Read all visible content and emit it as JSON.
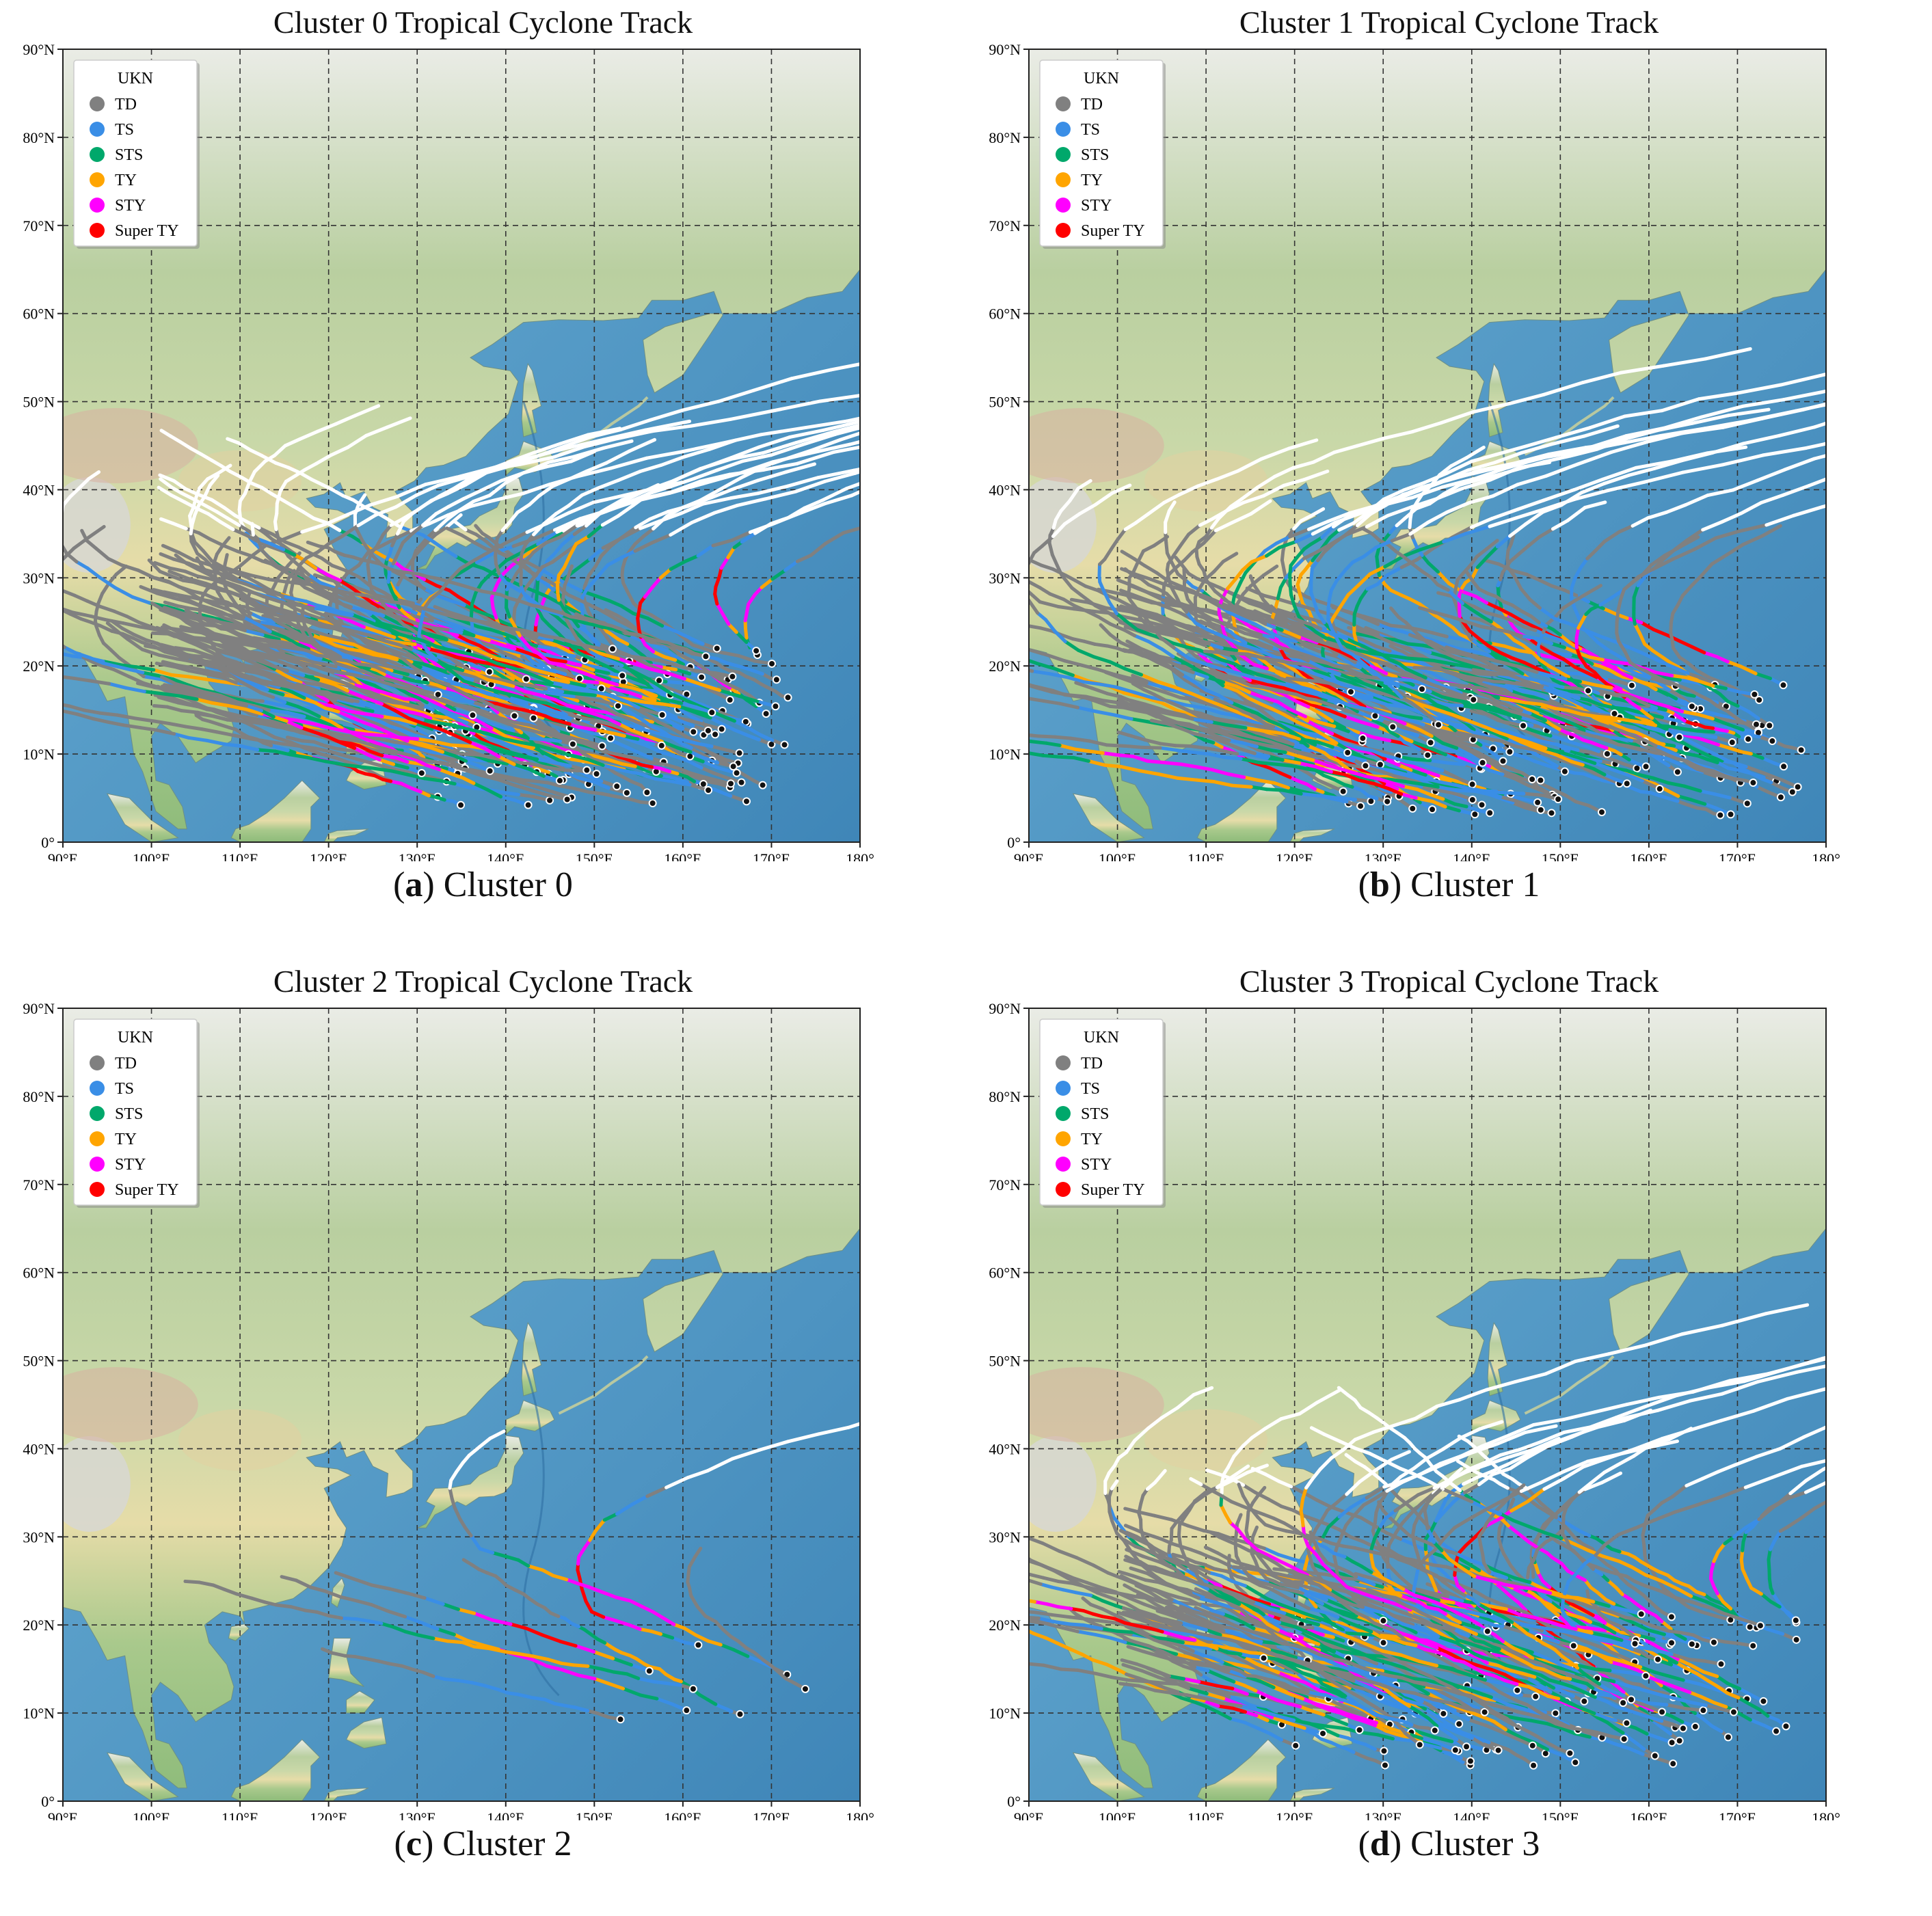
{
  "panels": [
    {
      "id": "a",
      "title": "Cluster 0 Tropical Cyclone Track",
      "caption_letter": "a",
      "caption_text": " Cluster 0",
      "density": "high-west",
      "seed": 11
    },
    {
      "id": "b",
      "title": "Cluster 1 Tropical Cyclone Track",
      "caption_letter": "b",
      "caption_text": " Cluster 1",
      "density": "high-central",
      "seed": 23
    },
    {
      "id": "c",
      "title": "Cluster 2 Tropical Cyclone Track",
      "caption_letter": "c",
      "caption_text": " Cluster 2",
      "density": "sparse",
      "seed": 37
    },
    {
      "id": "d",
      "title": "Cluster 3 Tropical Cyclone Track",
      "caption_letter": "d",
      "caption_text": " Cluster 3",
      "density": "high-southwest",
      "seed": 53
    }
  ],
  "legend": {
    "title": "UKN",
    "items": [
      {
        "label": "TD",
        "color": "#808080"
      },
      {
        "label": "TS",
        "color": "#3a8ee6"
      },
      {
        "label": "STS",
        "color": "#00a86b"
      },
      {
        "label": "TY",
        "color": "#ffa500"
      },
      {
        "label": "STY",
        "color": "#ff00ff"
      },
      {
        "label": "Super TY",
        "color": "#ff0000"
      }
    ]
  },
  "axes": {
    "lat_labels": [
      "0°",
      "10°N",
      "20°N",
      "30°N",
      "40°N",
      "50°N",
      "60°N",
      "70°N",
      "80°N",
      "90°N"
    ],
    "lon_labels": [
      "90°E",
      "100°E",
      "110°E",
      "120°E",
      "130°E",
      "140°E",
      "150°E",
      "160°E",
      "170°E",
      "180°"
    ],
    "lat_range": [
      0,
      90
    ],
    "lon_range": [
      90,
      180
    ]
  },
  "colors": {
    "ocean": "#5a9ec9",
    "land_green": "#b9cfa0",
    "land_tan": "#e6dca8",
    "land_red": "#d9b0a0",
    "ice": "#eef2f3",
    "track_extratropical": "#ffffff"
  }
}
